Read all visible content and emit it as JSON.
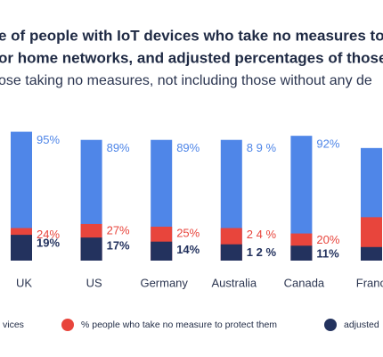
{
  "chart_data": {
    "type": "bar",
    "title": [
      "e of people with IoT devices who take no measures to pro",
      "or home networks, and adjusted percentages of those mo"
    ],
    "subtitle": "ose taking no measures, not including those without any de",
    "categories": [
      "UK",
      "US",
      "Germany",
      "Australia",
      "Canada",
      "France"
    ],
    "series": [
      {
        "name": "vices",
        "color": "#4f86e8",
        "values": [
          95,
          89,
          89,
          89,
          92,
          83
        ],
        "value_labels": [
          "95%",
          "89%",
          "89%",
          "8 9 %",
          "92%",
          null
        ]
      },
      {
        "name": "% people who take no measure to protect them",
        "color": "#e8453c",
        "values": [
          24,
          27,
          25,
          24,
          20,
          32
        ],
        "value_labels": [
          "24%",
          "27%",
          "25%",
          "2 4 %",
          "20%",
          null
        ]
      },
      {
        "name": "adjusted",
        "color": "#23325e",
        "values": [
          19,
          17,
          14,
          12,
          11,
          10
        ],
        "value_labels": [
          "19%",
          "17%",
          "14%",
          "1 2 %",
          "11%",
          null
        ]
      }
    ]
  }
}
